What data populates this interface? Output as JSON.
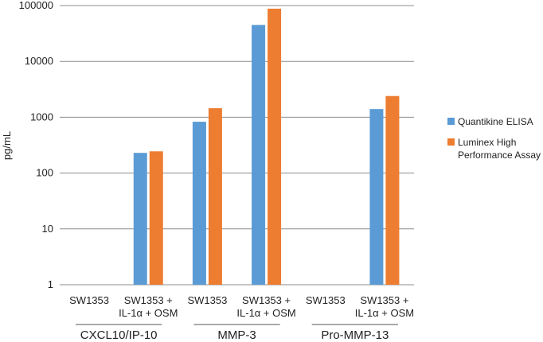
{
  "chart_data": {
    "type": "bar",
    "yscale": "log",
    "ylim": [
      1,
      100000
    ],
    "yticks": [
      "1",
      "10",
      "100",
      "1000",
      "10000",
      "100000"
    ],
    "ylabel": "pg/mL",
    "grid": true,
    "legend_position": "right",
    "categories": [
      {
        "label": [
          "SW1353"
        ],
        "group": "CXCL10/IP-10"
      },
      {
        "label": [
          "SW1353 +",
          "IL-1α + OSM"
        ],
        "group": "CXCL10/IP-10"
      },
      {
        "label": [
          "SW1353"
        ],
        "group": "MMP-3"
      },
      {
        "label": [
          "SW1353 +",
          "IL-1α + OSM"
        ],
        "group": "MMP-3"
      },
      {
        "label": [
          "SW1353"
        ],
        "group": "Pro-MMP-13"
      },
      {
        "label": [
          "SW1353 +",
          "IL-1α + OSM"
        ],
        "group": "Pro-MMP-13"
      }
    ],
    "groups": [
      "CXCL10/IP-10",
      "MMP-3",
      "Pro-MMP-13"
    ],
    "series": [
      {
        "name": "Quantikine ELISA",
        "color": "#5b9bd5",
        "values": [
          null,
          230,
          830,
          45000,
          null,
          1400
        ]
      },
      {
        "name": "Luminex High Performance Assay",
        "legend_lines": [
          "Luminex High",
          "Performance Assay"
        ],
        "color": "#ed7d31",
        "values": [
          null,
          245,
          1450,
          88000,
          null,
          2400
        ]
      }
    ]
  }
}
